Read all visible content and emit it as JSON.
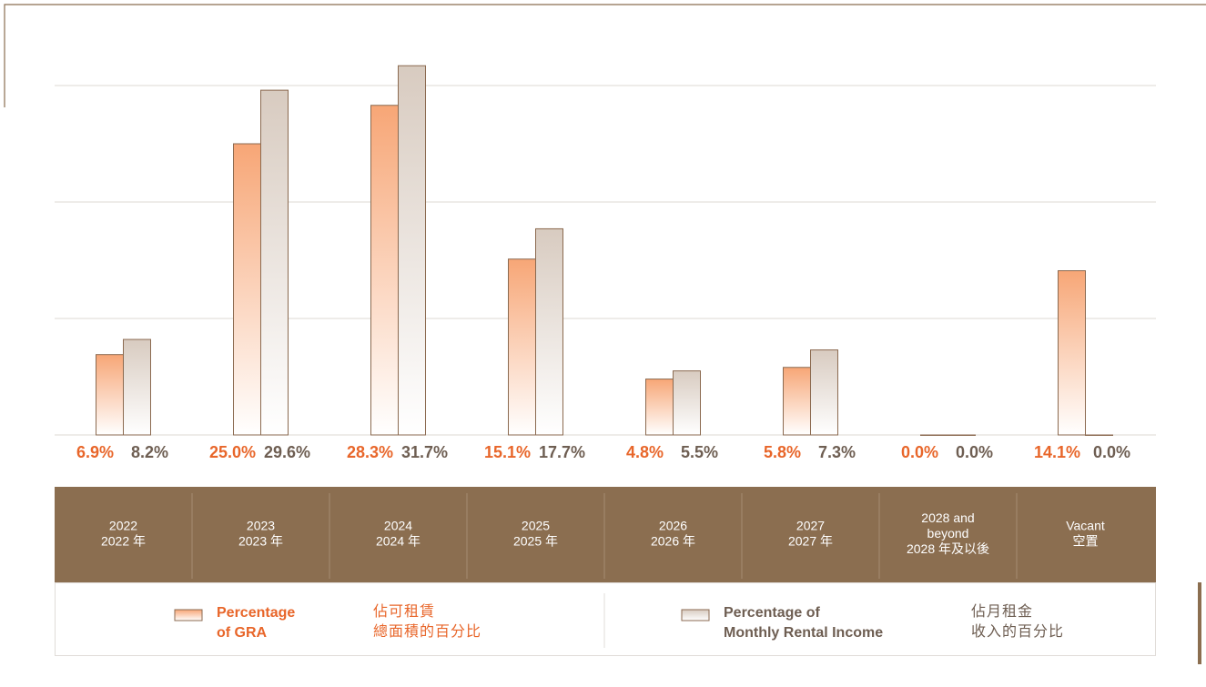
{
  "chart_data": {
    "type": "bar",
    "categories": [
      [
        "2022",
        "2022 年"
      ],
      [
        "2023",
        "2023 年"
      ],
      [
        "2024",
        "2024 年"
      ],
      [
        "2025",
        "2025 年"
      ],
      [
        "2026",
        "2026 年"
      ],
      [
        "2027",
        "2027 年"
      ],
      [
        "2028 and",
        "beyond",
        "2028 年及以後"
      ],
      [
        "Vacant",
        "空置"
      ]
    ],
    "series": [
      {
        "name": [
          "Percentage",
          "of GRA"
        ],
        "name_zh": [
          "佔可租賃",
          "總面積的百分比"
        ],
        "color": "#f7a676",
        "label_color": "#e8662a",
        "values": [
          6.9,
          25.0,
          28.3,
          15.1,
          4.8,
          5.8,
          0.0,
          14.1
        ],
        "value_labels": [
          "6.9%",
          "25.0%",
          "28.3%",
          "15.1%",
          "4.8%",
          "5.8%",
          "0.0%",
          "14.1%"
        ]
      },
      {
        "name": [
          "Percentage of",
          "Monthly Rental Income"
        ],
        "name_zh": [
          "佔月租金",
          "收入的百分比"
        ],
        "color": "#d8cbc0",
        "label_color": "#6e5e52",
        "values": [
          8.2,
          29.6,
          31.7,
          17.7,
          5.5,
          7.3,
          0.0,
          0.0
        ],
        "value_labels": [
          "8.2%",
          "29.6%",
          "31.7%",
          "17.7%",
          "5.5%",
          "7.3%",
          "0.0%",
          "0.0%"
        ]
      }
    ],
    "ylim": [
      0,
      30
    ],
    "yticks": [
      0,
      10,
      20,
      30
    ],
    "grid": true
  }
}
